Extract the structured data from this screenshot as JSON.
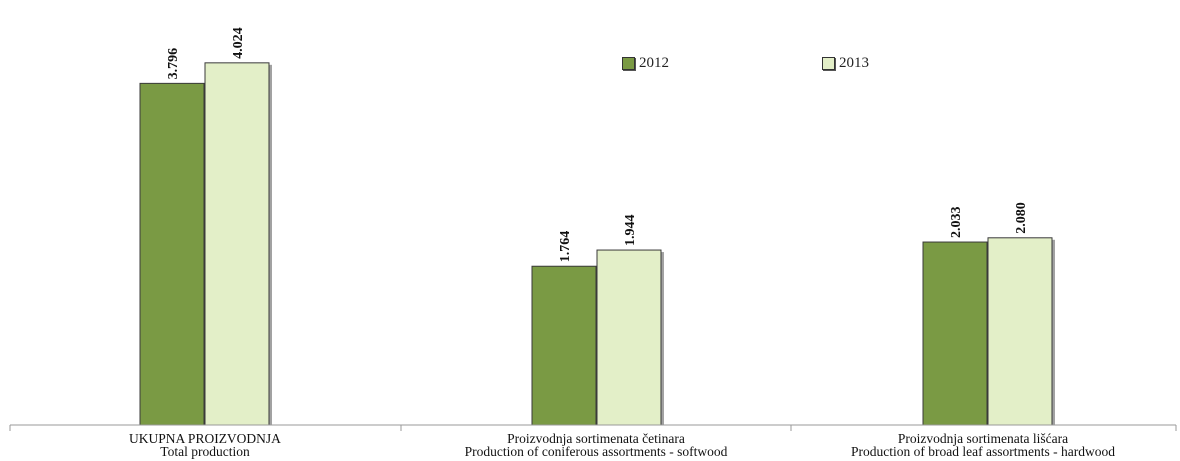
{
  "chart_data": {
    "type": "bar",
    "categories": [
      [
        "UKUPNA PROIZVODNJA",
        "Total production"
      ],
      [
        "Proizvodnja sortimenata četinara",
        "Production of coniferous assortments - softwood"
      ],
      [
        "Proizvodnja sortimenata lišćara",
        "Production of broad leaf assortments - hardwood"
      ]
    ],
    "series": [
      {
        "name": "2012",
        "values": [
          3796,
          1764,
          2033
        ],
        "labels": [
          "3.796",
          "1.764",
          "2.033"
        ],
        "color": "#7a9a44"
      },
      {
        "name": "2013",
        "values": [
          4024,
          1944,
          2080
        ],
        "labels": [
          "4.024",
          "1.944",
          "2.080"
        ],
        "color": "#e3efc8"
      }
    ],
    "ylim": [
      0,
      4500
    ],
    "grid": false,
    "legend": "top-right"
  }
}
